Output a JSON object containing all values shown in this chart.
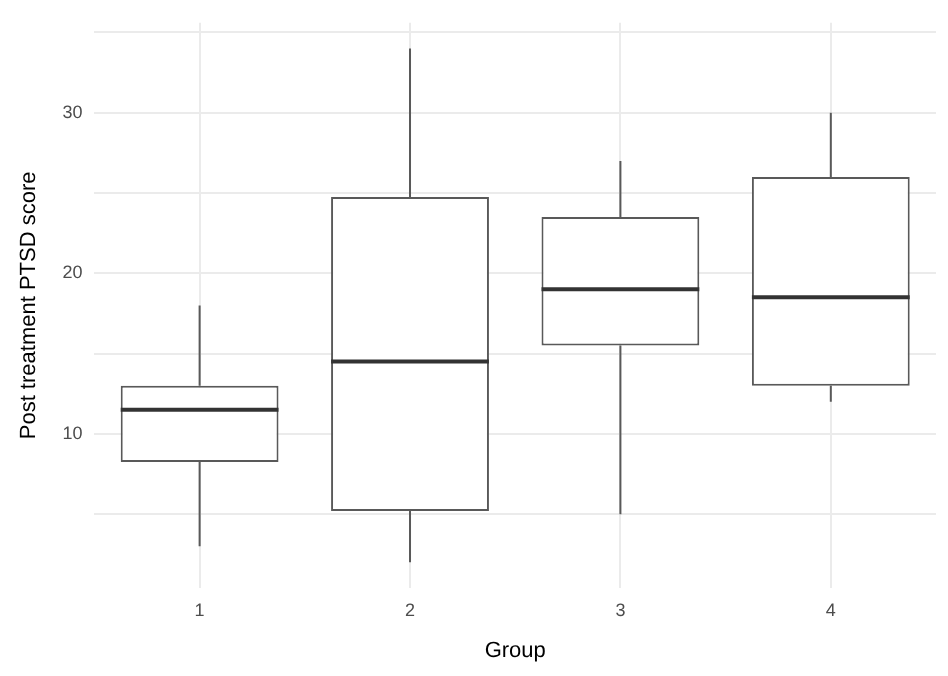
{
  "chart_data": {
    "type": "box",
    "xlabel": "Group",
    "ylabel": "Post treatment PTSD score",
    "categories": [
      "1",
      "2",
      "3",
      "4"
    ],
    "boxes": [
      {
        "low": 3,
        "q1": 8.25,
        "median": 11.5,
        "q3": 13,
        "high": 18
      },
      {
        "low": 2,
        "q1": 5.2,
        "median": 14.5,
        "q3": 24.75,
        "high": 34
      },
      {
        "low": 5,
        "q1": 15.5,
        "median": 19,
        "q3": 23.5,
        "high": 27
      },
      {
        "low": 12,
        "q1": 13,
        "median": 18.5,
        "q3": 26,
        "high": 30
      }
    ],
    "color": "#595959",
    "ylim": [
      0.4,
      35.6
    ],
    "yticks": [
      {
        "value": 5,
        "label": null
      },
      10,
      {
        "value": 15,
        "label": null
      },
      20,
      {
        "value": 25,
        "label": null
      },
      30,
      {
        "value": 35,
        "label": null
      }
    ],
    "grid": true
  }
}
